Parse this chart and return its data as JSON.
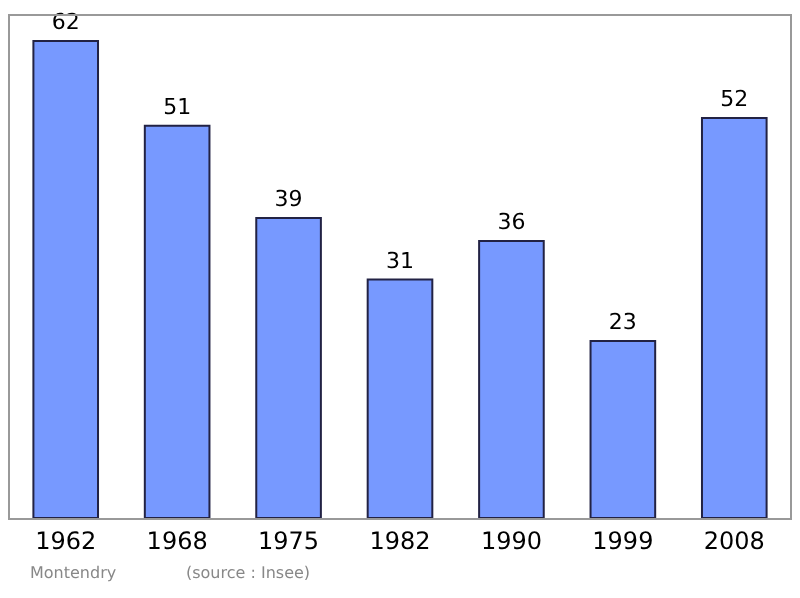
{
  "chart_data": {
    "type": "bar",
    "categories": [
      "1962",
      "1968",
      "1975",
      "1982",
      "1990",
      "1999",
      "2008"
    ],
    "values": [
      62,
      51,
      39,
      31,
      36,
      23,
      52
    ],
    "color": "#7799ff",
    "data_labels": true,
    "annotations": [
      "Montendry",
      "(source : Insee)"
    ]
  }
}
